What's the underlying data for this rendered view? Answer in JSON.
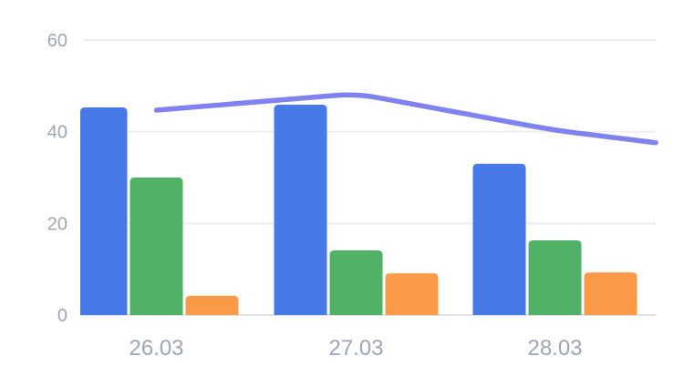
{
  "chart_data": {
    "type": "combo-bar-line",
    "categories": [
      "26.03",
      "27.03",
      "28.03"
    ],
    "series": [
      {
        "name": "blue-bars",
        "type": "bar",
        "color": "#4779E9",
        "values": [
          45.3,
          45.9,
          33.0
        ]
      },
      {
        "name": "green-bars",
        "type": "bar",
        "color": "#51B166",
        "values": [
          30.0,
          14.1,
          16.3
        ]
      },
      {
        "name": "orange-bars",
        "type": "bar",
        "color": "#FA9A49",
        "values": [
          4.2,
          9.1,
          9.3
        ]
      },
      {
        "name": "trend-line",
        "type": "line",
        "color": "#7F82EF",
        "values": [
          44.7,
          48.3,
          40.3
        ],
        "edge_value": 37.6
      }
    ],
    "y_ticks": [
      "0",
      "20",
      "40",
      "60"
    ],
    "y_tick_values": [
      0,
      20,
      40,
      60
    ],
    "ylim": [
      0,
      60
    ],
    "grid": true,
    "legend": "none",
    "title": "",
    "xlabel": "",
    "ylabel": "",
    "colors": {
      "background": "#FFFFFF",
      "grid_color": "#EDEDED",
      "baseline_color": "#E2E2E2",
      "axis_label_color": "#9CA6B4"
    }
  }
}
